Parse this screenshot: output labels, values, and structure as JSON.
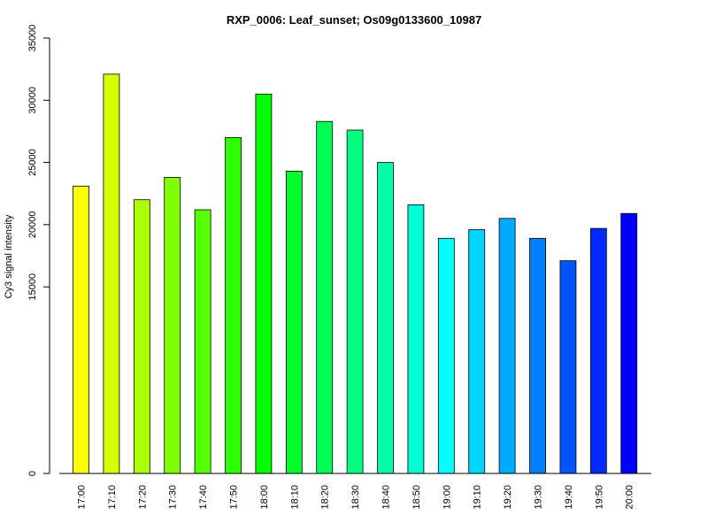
{
  "chart_data": {
    "type": "bar",
    "title": "RXP_0006: Leaf_sunset; Os09g0133600_10987",
    "xlabel": "",
    "ylabel": "Cy3 signal intensity",
    "ylim": [
      0,
      35000
    ],
    "yticks": [
      0,
      15000,
      20000,
      25000,
      30000,
      35000
    ],
    "ytick_labels": [
      "0",
      "15000",
      "20000",
      "25000",
      "30000",
      "35000"
    ],
    "categories": [
      "17:00",
      "17:10",
      "17:20",
      "17:30",
      "17:40",
      "17:50",
      "18:00",
      "18:10",
      "18:20",
      "18:30",
      "18:40",
      "18:50",
      "19:00",
      "19:10",
      "19:20",
      "19:30",
      "19:40",
      "19:50",
      "20:00"
    ],
    "values": [
      23100,
      32100,
      22000,
      23800,
      21200,
      27000,
      30500,
      24300,
      28300,
      27600,
      25000,
      21600,
      18900,
      19600,
      20500,
      18900,
      17100,
      19700,
      20900
    ],
    "colors": [
      "#FFFF00",
      "#D4FF00",
      "#AAFF00",
      "#80FF00",
      "#55FF00",
      "#2BFF00",
      "#00FF00",
      "#00FF2A",
      "#00FF55",
      "#00FF80",
      "#00FFAA",
      "#00FFD4",
      "#00FFFF",
      "#00D5FF",
      "#00AAFF",
      "#0080FF",
      "#0055FF",
      "#002AFF",
      "#0000FF"
    ],
    "grid": false,
    "legend": "none"
  }
}
